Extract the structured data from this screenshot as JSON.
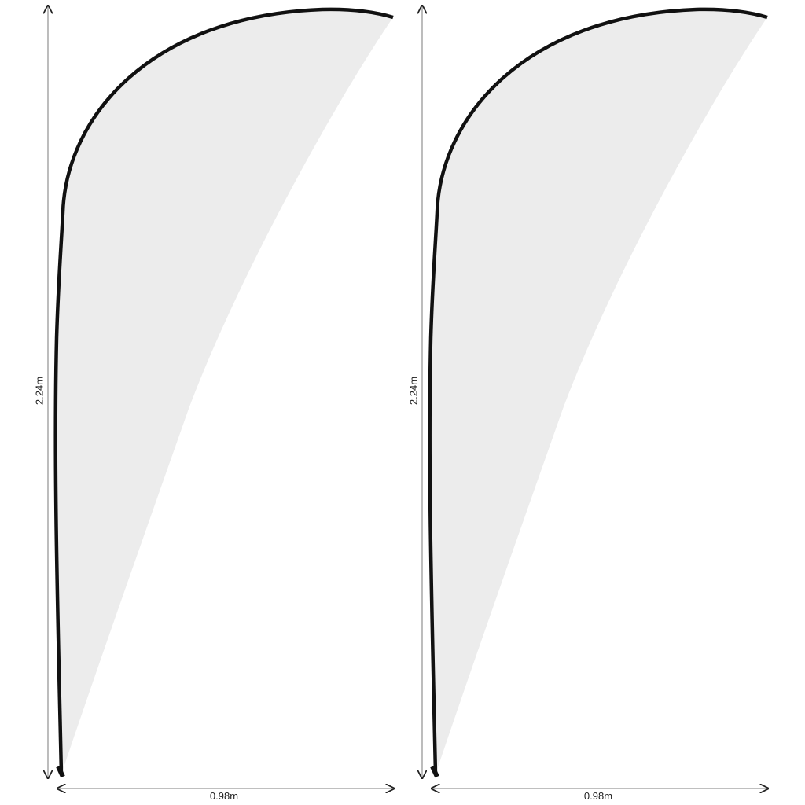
{
  "flags": [
    {
      "height_label": "2.24m",
      "width_label": "0.98m"
    },
    {
      "height_label": "2.24m",
      "width_label": "0.98m"
    }
  ],
  "colors": {
    "fabric": "#ececec",
    "border": "#111111",
    "dimension_line": "#888888"
  }
}
